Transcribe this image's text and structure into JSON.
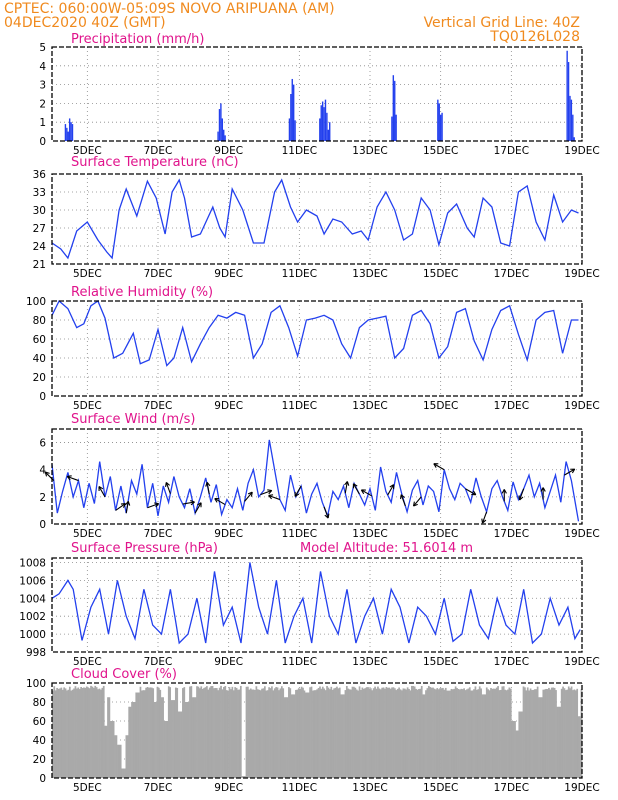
{
  "header": {
    "line1": "CPTEC:    060:00W-05:09S   NOVO ARIPUANA (AM)",
    "line2_left": "04DEC2020 40Z (GMT)",
    "line2_right": "Vertical Grid Line: 40Z",
    "line3_right": "TQ0126L028"
  },
  "colors": {
    "header": "#f08a1e",
    "title": "#e0148c",
    "series": "#2340ee",
    "cloud": "#a9a9a9",
    "arrow": "#000000"
  },
  "chart_data": [
    {
      "id": "precip",
      "type": "bar",
      "title": "Precipitation (mm/h)",
      "x_unit": "days since 04DEC 00Z",
      "ylim": [
        0,
        5
      ],
      "yticks": [
        0,
        1,
        2,
        3,
        4,
        5
      ],
      "xticks": [
        "5DEC",
        "7DEC",
        "9DEC",
        "11DEC",
        "13DEC",
        "15DEC",
        "17DEC",
        "19DEC"
      ],
      "bars": [
        {
          "x": 0.38,
          "v": 0.9
        },
        {
          "x": 0.42,
          "v": 0.7
        },
        {
          "x": 0.46,
          "v": 0.5
        },
        {
          "x": 0.5,
          "v": 1.2
        },
        {
          "x": 0.54,
          "v": 1.0
        },
        {
          "x": 0.58,
          "v": 0.9
        },
        {
          "x": 4.7,
          "v": 0.5
        },
        {
          "x": 4.74,
          "v": 1.7
        },
        {
          "x": 4.78,
          "v": 2.0
        },
        {
          "x": 4.82,
          "v": 1.2
        },
        {
          "x": 4.86,
          "v": 0.6
        },
        {
          "x": 4.9,
          "v": 0.3
        },
        {
          "x": 6.72,
          "v": 1.2
        },
        {
          "x": 6.76,
          "v": 2.5
        },
        {
          "x": 6.8,
          "v": 3.3
        },
        {
          "x": 6.84,
          "v": 3.0
        },
        {
          "x": 6.88,
          "v": 1.1
        },
        {
          "x": 7.58,
          "v": 1.2
        },
        {
          "x": 7.62,
          "v": 1.9
        },
        {
          "x": 7.66,
          "v": 2.1
        },
        {
          "x": 7.7,
          "v": 1.8
        },
        {
          "x": 7.74,
          "v": 2.2
        },
        {
          "x": 7.78,
          "v": 1.5
        },
        {
          "x": 7.82,
          "v": 0.6
        },
        {
          "x": 7.86,
          "v": 1.0
        },
        {
          "x": 9.62,
          "v": 1.3
        },
        {
          "x": 9.66,
          "v": 3.5
        },
        {
          "x": 9.7,
          "v": 3.2
        },
        {
          "x": 9.74,
          "v": 1.4
        },
        {
          "x": 10.92,
          "v": 2.2
        },
        {
          "x": 10.96,
          "v": 2.0
        },
        {
          "x": 11.0,
          "v": 1.4
        },
        {
          "x": 11.04,
          "v": 1.5
        },
        {
          "x": 14.58,
          "v": 4.8
        },
        {
          "x": 14.62,
          "v": 4.2
        },
        {
          "x": 14.66,
          "v": 2.4
        },
        {
          "x": 14.7,
          "v": 2.2
        },
        {
          "x": 14.74,
          "v": 1.4
        },
        {
          "x": 14.78,
          "v": 0.2
        }
      ]
    },
    {
      "id": "temp",
      "type": "line",
      "title": "Surface Temperature (nC)",
      "x_unit": "days since 04DEC 00Z",
      "ylim": [
        21,
        36
      ],
      "yticks": [
        21,
        24,
        27,
        30,
        33,
        36
      ],
      "xticks": [
        "5DEC",
        "7DEC",
        "9DEC",
        "11DEC",
        "13DEC",
        "15DEC",
        "17DEC",
        "19DEC"
      ],
      "x": [
        0,
        0.25,
        0.45,
        0.7,
        1.0,
        1.3,
        1.55,
        1.7,
        1.9,
        2.1,
        2.4,
        2.7,
        2.95,
        3.2,
        3.4,
        3.6,
        3.75,
        3.95,
        4.2,
        4.55,
        4.75,
        4.9,
        5.1,
        5.4,
        5.7,
        6.0,
        6.3,
        6.5,
        6.75,
        6.95,
        7.2,
        7.5,
        7.7,
        7.95,
        8.2,
        8.5,
        8.75,
        8.95,
        9.2,
        9.45,
        9.7,
        9.95,
        10.2,
        10.45,
        10.7,
        10.95,
        11.2,
        11.45,
        11.75,
        11.95,
        12.2,
        12.45,
        12.7,
        12.95,
        13.2,
        13.45,
        13.7,
        13.95,
        14.2,
        14.45,
        14.7,
        14.9
      ],
      "y": [
        24.5,
        23.5,
        22,
        26.5,
        28,
        25,
        23,
        22,
        30,
        33.5,
        29,
        34.8,
        32,
        26,
        33,
        35,
        32,
        25.5,
        26,
        30.5,
        27,
        25.5,
        33.5,
        30,
        24.5,
        24.5,
        33,
        35,
        30.5,
        28,
        30,
        29,
        26,
        28.5,
        28,
        26,
        26.5,
        25,
        30.5,
        33,
        30,
        25,
        26,
        32,
        30,
        24.2,
        29.5,
        31,
        27,
        25.5,
        32,
        30.5,
        24.5,
        24,
        33,
        34,
        28,
        25,
        32.5,
        28,
        30,
        29.5
      ]
    },
    {
      "id": "rh",
      "type": "line",
      "title": "Relative Humidity (%)",
      "x_unit": "days since 04DEC 00Z",
      "ylim": [
        0,
        100
      ],
      "yticks": [
        0,
        20,
        40,
        60,
        80,
        100
      ],
      "xticks": [
        "5DEC",
        "7DEC",
        "9DEC",
        "11DEC",
        "13DEC",
        "15DEC",
        "17DEC",
        "19DEC"
      ],
      "x": [
        0,
        0.2,
        0.45,
        0.7,
        0.9,
        1.1,
        1.3,
        1.5,
        1.75,
        2.0,
        2.3,
        2.5,
        2.75,
        3.0,
        3.25,
        3.45,
        3.7,
        3.95,
        4.2,
        4.45,
        4.7,
        4.95,
        5.2,
        5.45,
        5.7,
        5.95,
        6.2,
        6.45,
        6.7,
        6.95,
        7.2,
        7.45,
        7.7,
        7.95,
        8.2,
        8.45,
        8.7,
        8.95,
        9.2,
        9.45,
        9.7,
        9.95,
        10.2,
        10.45,
        10.7,
        10.95,
        11.2,
        11.45,
        11.7,
        11.95,
        12.2,
        12.45,
        12.7,
        12.95,
        13.2,
        13.45,
        13.7,
        13.95,
        14.2,
        14.45,
        14.7,
        14.9
      ],
      "y": [
        85,
        100,
        92,
        72,
        76,
        95,
        100,
        82,
        40,
        45,
        66,
        34,
        38,
        70,
        32,
        40,
        72,
        36,
        55,
        72,
        85,
        82,
        88,
        85,
        40,
        55,
        88,
        95,
        72,
        42,
        80,
        82,
        85,
        80,
        55,
        40,
        72,
        80,
        82,
        84,
        40,
        50,
        85,
        90,
        76,
        40,
        52,
        88,
        92,
        58,
        38,
        70,
        90,
        95,
        65,
        38,
        80,
        88,
        90,
        45,
        80,
        80
      ]
    },
    {
      "id": "wind",
      "type": "line",
      "title": "Surface Wind (m/s)",
      "x_unit": "days since 04DEC 00Z",
      "ylim": [
        0,
        7
      ],
      "yticks": [
        0,
        2,
        4,
        6
      ],
      "xticks": [
        "5DEC",
        "7DEC",
        "9DEC",
        "11DEC",
        "13DEC",
        "15DEC",
        "17DEC",
        "19DEC"
      ],
      "x": [
        0,
        0.15,
        0.3,
        0.45,
        0.6,
        0.75,
        0.9,
        1.05,
        1.2,
        1.35,
        1.5,
        1.65,
        1.8,
        1.95,
        2.1,
        2.25,
        2.4,
        2.55,
        2.7,
        2.85,
        3.0,
        3.15,
        3.3,
        3.45,
        3.6,
        3.75,
        3.9,
        4.05,
        4.2,
        4.35,
        4.5,
        4.65,
        4.8,
        4.95,
        5.1,
        5.25,
        5.4,
        5.55,
        5.7,
        5.85,
        6.0,
        6.15,
        6.3,
        6.45,
        6.6,
        6.75,
        6.9,
        7.05,
        7.2,
        7.35,
        7.5,
        7.65,
        7.8,
        7.95,
        8.1,
        8.25,
        8.4,
        8.55,
        8.7,
        8.85,
        9.0,
        9.15,
        9.3,
        9.45,
        9.6,
        9.75,
        9.9,
        10.05,
        10.2,
        10.35,
        10.5,
        10.65,
        10.8,
        10.95,
        11.1,
        11.25,
        11.4,
        11.55,
        11.7,
        11.85,
        12.0,
        12.15,
        12.3,
        12.45,
        12.6,
        12.75,
        12.9,
        13.05,
        13.2,
        13.35,
        13.5,
        13.65,
        13.8,
        13.95,
        14.1,
        14.25,
        14.4,
        14.55,
        14.7,
        14.9
      ],
      "y": [
        4.4,
        0.8,
        2.4,
        3.8,
        2.0,
        3.2,
        1.2,
        3.0,
        1.5,
        4.6,
        2.0,
        3.5,
        1.0,
        2.8,
        0.8,
        3.2,
        2.2,
        4.4,
        1.2,
        3.0,
        0.6,
        2.8,
        1.6,
        3.5,
        2.0,
        1.2,
        2.6,
        0.8,
        2.0,
        3.4,
        1.6,
        2.9,
        0.7,
        1.8,
        1.2,
        2.6,
        1.0,
        3.0,
        4.0,
        2.0,
        2.5,
        6.2,
        4.0,
        1.8,
        1.0,
        3.6,
        2.0,
        2.8,
        0.8,
        2.2,
        3.0,
        1.6,
        0.6,
        2.4,
        1.8,
        2.8,
        1.2,
        3.0,
        2.2,
        1.4,
        2.6,
        1.0,
        4.2,
        2.4,
        1.6,
        3.8,
        2.2,
        0.9,
        2.5,
        3.2,
        1.4,
        2.8,
        2.4,
        0.9,
        4.0,
        2.6,
        1.8,
        3.0,
        2.6,
        1.6,
        3.4,
        2.0,
        0.9,
        2.6,
        3.2,
        2.0,
        1.0,
        3.1,
        1.8,
        2.6,
        3.6,
        2.0,
        3.0,
        1.2,
        2.4,
        3.6,
        1.6,
        4.6,
        3.2,
        0.2
      ],
      "arrows": [
        {
          "x": 0.05,
          "dir_deg": 135
        },
        {
          "x": 0.75,
          "dir_deg": 160
        },
        {
          "x": 1.5,
          "dir_deg": 120
        },
        {
          "x": 1.8,
          "dir_deg": 35
        },
        {
          "x": 2.1,
          "dir_deg": 80
        },
        {
          "x": 2.7,
          "dir_deg": 20
        },
        {
          "x": 3.35,
          "dir_deg": 110
        },
        {
          "x": 3.7,
          "dir_deg": 10
        },
        {
          "x": 4.05,
          "dir_deg": 60
        },
        {
          "x": 4.45,
          "dir_deg": 100
        },
        {
          "x": 4.9,
          "dir_deg": 150
        },
        {
          "x": 5.45,
          "dir_deg": 50
        },
        {
          "x": 5.9,
          "dir_deg": 20
        },
        {
          "x": 6.45,
          "dir_deg": 160
        },
        {
          "x": 7.05,
          "dir_deg": 240
        },
        {
          "x": 7.7,
          "dir_deg": 290
        },
        {
          "x": 8.3,
          "dir_deg": 80
        },
        {
          "x": 8.7,
          "dir_deg": 120
        },
        {
          "x": 9.05,
          "dir_deg": 150
        },
        {
          "x": 9.5,
          "dir_deg": 60
        },
        {
          "x": 10.0,
          "dir_deg": 110
        },
        {
          "x": 10.45,
          "dir_deg": 230
        },
        {
          "x": 11.1,
          "dir_deg": 150
        },
        {
          "x": 11.7,
          "dir_deg": 330
        },
        {
          "x": 12.3,
          "dir_deg": 250
        },
        {
          "x": 12.8,
          "dir_deg": 90
        },
        {
          "x": 13.35,
          "dir_deg": 250
        },
        {
          "x": 13.9,
          "dir_deg": 90
        },
        {
          "x": 14.5,
          "dir_deg": 30
        }
      ]
    },
    {
      "id": "pres",
      "type": "line",
      "title": "Surface Pressure (hPa)",
      "annotation": "Model Altitude: 51.6014 m",
      "x_unit": "days since 04DEC 00Z",
      "ylim": [
        998,
        1008.5
      ],
      "yticks": [
        998,
        1000,
        1002,
        1004,
        1006,
        1008
      ],
      "xticks": [
        "5DEC",
        "7DEC",
        "9DEC",
        "11DEC",
        "13DEC",
        "15DEC",
        "17DEC",
        "19DEC"
      ],
      "x": [
        0,
        0.2,
        0.45,
        0.6,
        0.85,
        1.1,
        1.35,
        1.6,
        1.85,
        2.1,
        2.35,
        2.6,
        2.85,
        3.1,
        3.35,
        3.6,
        3.85,
        4.1,
        4.35,
        4.6,
        4.85,
        5.1,
        5.35,
        5.6,
        5.85,
        6.1,
        6.35,
        6.6,
        6.85,
        7.1,
        7.35,
        7.6,
        7.85,
        8.1,
        8.35,
        8.6,
        8.85,
        9.1,
        9.35,
        9.6,
        9.85,
        10.1,
        10.35,
        10.6,
        10.85,
        11.1,
        11.35,
        11.6,
        11.85,
        12.1,
        12.35,
        12.6,
        12.85,
        13.1,
        13.35,
        13.6,
        13.85,
        14.1,
        14.35,
        14.6,
        14.8,
        14.95
      ],
      "y": [
        1004,
        1004.5,
        1006,
        1005,
        999.3,
        1003,
        1005,
        1000,
        1006,
        1002,
        999.5,
        1005,
        1001,
        1000,
        1005,
        999,
        1000,
        1004,
        999,
        1007,
        1001,
        1003,
        999,
        1008,
        1003,
        1000,
        1006,
        999,
        1002,
        1004,
        999,
        1007,
        1002,
        1000,
        1005,
        999,
        1002,
        1004,
        1000,
        1005,
        1003,
        999,
        1003,
        1002,
        1000,
        1004,
        999.2,
        1000,
        1005,
        1001,
        999.5,
        1004,
        1001,
        1000,
        1005,
        999,
        1000,
        1004,
        1001,
        1003,
        999.5,
        1000.5
      ]
    },
    {
      "id": "cloud",
      "type": "bar",
      "title": "Cloud Cover (%)",
      "x_unit": "days since 04DEC 00Z",
      "ylim": [
        0,
        100
      ],
      "yticks": [
        0,
        20,
        40,
        60,
        80,
        100
      ],
      "xticks": [
        "5DEC",
        "7DEC",
        "9DEC",
        "11DEC",
        "13DEC",
        "15DEC",
        "17DEC",
        "19DEC"
      ],
      "base_level": 95,
      "dips": [
        {
          "x": 1.5,
          "v": 55
        },
        {
          "x": 1.6,
          "v": 85
        },
        {
          "x": 1.7,
          "v": 60
        },
        {
          "x": 1.8,
          "v": 45
        },
        {
          "x": 1.9,
          "v": 35
        },
        {
          "x": 2.0,
          "v": 10
        },
        {
          "x": 2.1,
          "v": 45
        },
        {
          "x": 2.2,
          "v": 75
        },
        {
          "x": 2.3,
          "v": 80
        },
        {
          "x": 2.4,
          "v": 90
        },
        {
          "x": 2.9,
          "v": 80
        },
        {
          "x": 3.1,
          "v": 85
        },
        {
          "x": 3.2,
          "v": 60
        },
        {
          "x": 3.4,
          "v": 82
        },
        {
          "x": 3.6,
          "v": 70
        },
        {
          "x": 3.8,
          "v": 80
        },
        {
          "x": 4.0,
          "v": 85
        },
        {
          "x": 5.4,
          "v": 2
        },
        {
          "x": 6.6,
          "v": 85
        },
        {
          "x": 6.8,
          "v": 88
        },
        {
          "x": 7.2,
          "v": 90
        },
        {
          "x": 8.2,
          "v": 88
        },
        {
          "x": 10.5,
          "v": 88
        },
        {
          "x": 11.2,
          "v": 92
        },
        {
          "x": 12.2,
          "v": 88
        },
        {
          "x": 13.05,
          "v": 60
        },
        {
          "x": 13.15,
          "v": 50
        },
        {
          "x": 13.25,
          "v": 70
        },
        {
          "x": 13.8,
          "v": 85
        },
        {
          "x": 14.3,
          "v": 75
        },
        {
          "x": 14.9,
          "v": 65
        }
      ]
    }
  ]
}
